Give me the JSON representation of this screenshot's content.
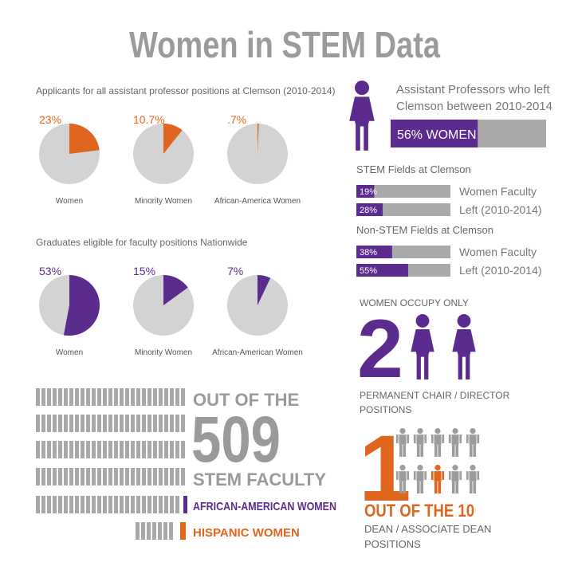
{
  "title": "Women in STEM Data",
  "applicants": {
    "caption": "Applicants for all assistant professor positions at Clemson (2010-2014)",
    "pies": [
      {
        "label": "Women",
        "value": 23,
        "value_label": "23%"
      },
      {
        "label": "Minority Women",
        "value": 10.7,
        "value_label": "10.7%"
      },
      {
        "label": "African-America Women",
        "value": 0.7,
        "value_label": ".7%"
      }
    ]
  },
  "graduates": {
    "caption": "Graduates eligible for faculty positions Nationwide",
    "pies": [
      {
        "label": "Women",
        "value": 53,
        "value_label": "53%"
      },
      {
        "label": "Minority Women",
        "value": 15,
        "value_label": "15%"
      },
      {
        "label": "African-American Women",
        "value": 7,
        "value_label": "7%"
      }
    ]
  },
  "left_professors": {
    "lines": [
      "Assistant Professors who left",
      "Clemson between 2010-2014"
    ],
    "value": 56,
    "value_label": "56% WOMEN"
  },
  "stem": {
    "heading": "STEM Fields at Clemson",
    "bars": [
      {
        "value": 19,
        "value_label": "19%",
        "label": "Women Faculty"
      },
      {
        "value": 28,
        "value_label": "28%",
        "label": "Left (2010-2014)"
      }
    ]
  },
  "non_stem": {
    "heading": "Non-STEM Fields at Clemson",
    "bars": [
      {
        "value": 38,
        "value_label": "38%",
        "label": "Women Faculty"
      },
      {
        "value": 55,
        "value_label": "55%",
        "label": "Left (2010-2014)"
      }
    ]
  },
  "chairs": {
    "lead": "WOMEN OCCUPY ONLY",
    "count": 2,
    "lines": [
      "PERMANENT CHAIR / DIRECTOR",
      "POSITIONS"
    ]
  },
  "dean": {
    "count": 1,
    "total": 10,
    "lead": "OUT OF THE 10",
    "lines": [
      "DEAN / ASSOCIATE DEAN",
      "POSITIONS"
    ]
  },
  "faculty": {
    "lead": "OUT OF THE",
    "total": 509,
    "unit": "STEM FACULTY",
    "groups": [
      "AFRICAN-AMERICAN WOMEN",
      "HISPANIC WOMEN"
    ]
  }
}
